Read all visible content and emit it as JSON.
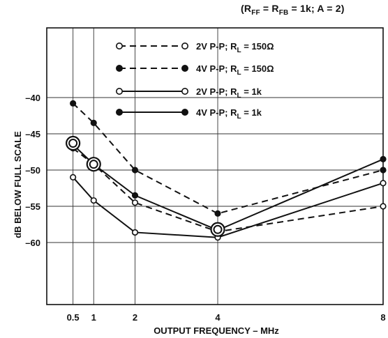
{
  "conditions": {
    "open": "(",
    "r_ff_main": "R",
    "r_ff_sub": "FF",
    "eq1": " = ",
    "r_fb_main": "R",
    "r_fb_sub": "FB",
    "rest": " = 1k; A = 2)"
  },
  "chart_data": {
    "type": "line",
    "xlabel": "OUTPUT FREQUENCY – MHz",
    "ylabel": "dB BELOW FULL SCALE",
    "xlim": [
      0,
      8
    ],
    "ylim": [
      -67,
      -33
    ],
    "xticks": [
      0.5,
      1,
      2,
      4,
      8
    ],
    "xtick_labels": [
      "0.5",
      "1",
      "2",
      "4",
      "8"
    ],
    "yticks": [
      -40,
      -45,
      -50,
      -55,
      -60
    ],
    "ytick_labels": [
      "–40",
      "–45",
      "–50",
      "–55",
      "–60"
    ],
    "xgrid": [
      0.5,
      1,
      2,
      4
    ],
    "ygrid": [
      -40,
      -45,
      -50,
      -55,
      -60
    ],
    "legend_position": "top-left",
    "series": [
      {
        "name": "2V P-P; RL = 150Ω",
        "legend_parts": [
          "2V P-P; R",
          "L",
          " = 150Ω"
        ],
        "style": "dashed",
        "marker": "open",
        "x": [
          0.5,
          1,
          2,
          4,
          8
        ],
        "y": [
          -47,
          -49.2,
          -54.5,
          -58.5,
          -55
        ]
      },
      {
        "name": "4V P-P; RL = 150Ω",
        "legend_parts": [
          "4V P-P; R",
          "L",
          " = 150Ω"
        ],
        "style": "dashed",
        "marker": "filled",
        "x": [
          0.5,
          1,
          2,
          4,
          8
        ],
        "y": [
          -40.8,
          -43.5,
          -50,
          -56,
          -50
        ]
      },
      {
        "name": "2V P-P; RL = 1k",
        "legend_parts": [
          "2V P-P; R",
          "L",
          " = 1k"
        ],
        "style": "solid",
        "marker": "open",
        "x": [
          0.5,
          1,
          2,
          4,
          8
        ],
        "y": [
          -51,
          -54.2,
          -58.6,
          -59.3,
          -51.8
        ]
      },
      {
        "name": "4V P-P; RL = 1k",
        "legend_parts": [
          "4V P-P; R",
          "L",
          " = 1k"
        ],
        "style": "solid",
        "marker": "filled",
        "x": [
          0.5,
          1,
          2,
          4,
          8
        ],
        "y": [
          -46.5,
          -49.2,
          -53.5,
          -58.3,
          -48.5
        ]
      }
    ],
    "highlight_points": [
      {
        "x": 0.5,
        "y": -46.3
      },
      {
        "x": 1,
        "y": -49.2
      },
      {
        "x": 4,
        "y": -58.2
      }
    ]
  }
}
